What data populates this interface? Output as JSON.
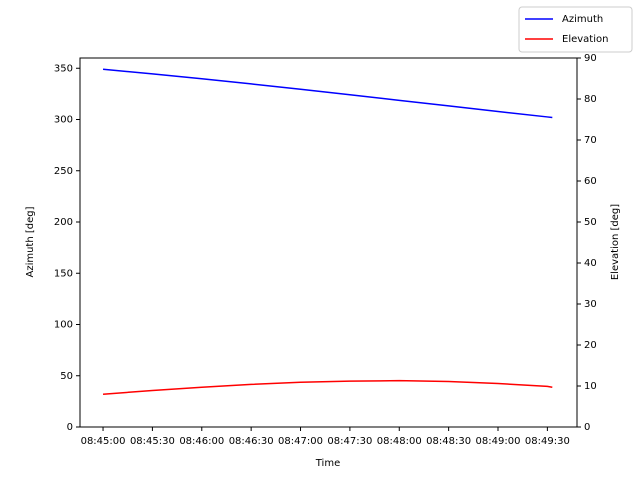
{
  "chart_data": {
    "type": "line",
    "xlabel": "Time",
    "ylabel": "Azimuth [deg]",
    "y2label": "Elevation [deg]",
    "x": [
      "08:45:00",
      "08:45:30",
      "08:46:00",
      "08:46:30",
      "08:47:00",
      "08:47:30",
      "08:48:00",
      "08:48:30",
      "08:49:00",
      "08:49:30",
      "08:49:33"
    ],
    "series": [
      {
        "name": "Azimuth",
        "color": "#0000ff",
        "axis": "y",
        "values": [
          349,
          344.5,
          339.7,
          334.7,
          329.5,
          324.2,
          318.7,
          313.3,
          307.8,
          302.5,
          301.9
        ]
      },
      {
        "name": "Elevation",
        "color": "#ff0000",
        "axis": "y2",
        "values": [
          8.0,
          8.9,
          9.7,
          10.4,
          10.9,
          11.2,
          11.3,
          11.1,
          10.6,
          9.9,
          9.7
        ]
      }
    ],
    "xlim": [
      "08:44:46",
      "08:49:48"
    ],
    "xticks": [
      "08:45:00",
      "08:45:30",
      "08:46:00",
      "08:46:30",
      "08:47:00",
      "08:47:30",
      "08:48:00",
      "08:48:30",
      "08:49:00",
      "08:49:30"
    ],
    "ylim": [
      0,
      360
    ],
    "yticks": [
      0,
      50,
      100,
      150,
      200,
      250,
      300,
      350
    ],
    "y2lim": [
      0,
      90
    ],
    "y2ticks": [
      0,
      10,
      20,
      30,
      40,
      50,
      60,
      70,
      80,
      90
    ],
    "grid": false,
    "legend": "upper right"
  }
}
